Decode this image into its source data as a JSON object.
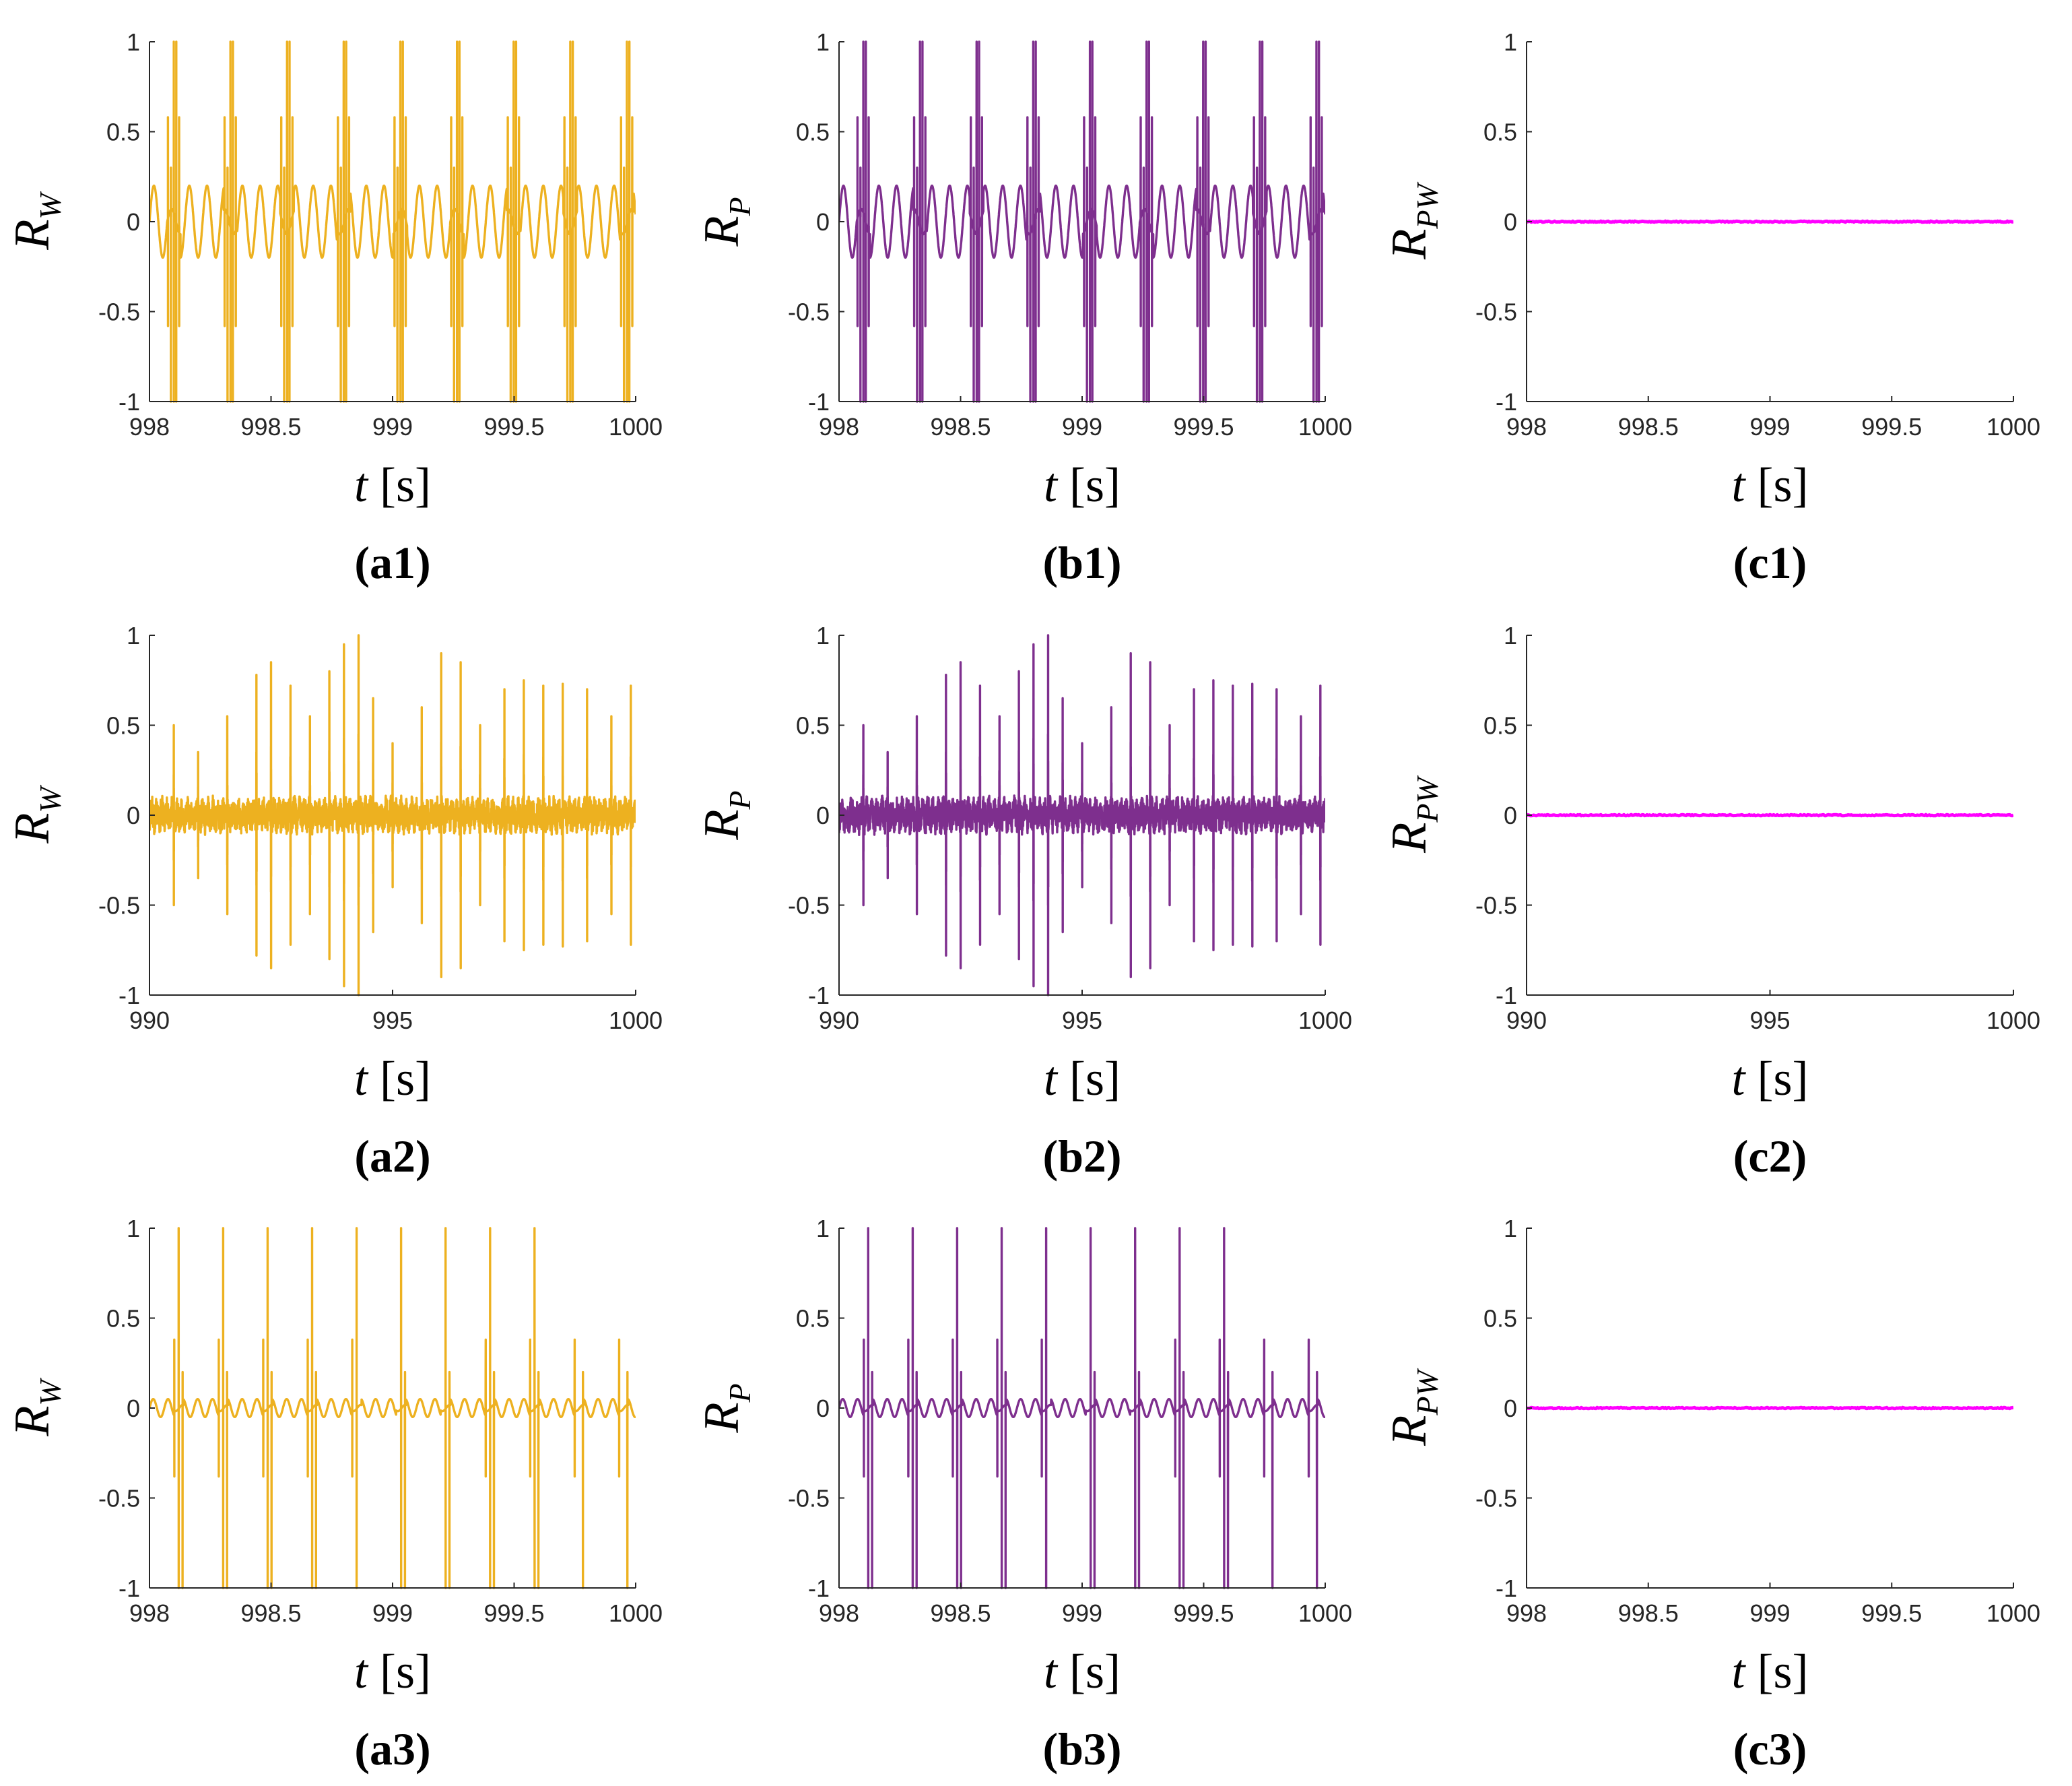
{
  "figure": {
    "panels": [
      {
        "id": "a1",
        "label": "(a1)",
        "ylabel": "R",
        "ysub": "W",
        "xlabel_var": "t",
        "xlabel_unit": "[s]",
        "color": "#EDB120"
      },
      {
        "id": "b1",
        "label": "(b1)",
        "ylabel": "R",
        "ysub": "P",
        "xlabel_var": "t",
        "xlabel_unit": "[s]",
        "color": "#7E2F8E"
      },
      {
        "id": "c1",
        "label": "(c1)",
        "ylabel": "R",
        "ysub": "PW",
        "xlabel_var": "t",
        "xlabel_unit": "[s]",
        "color": "#FF00FF"
      },
      {
        "id": "a2",
        "label": "(a2)",
        "ylabel": "R",
        "ysub": "W",
        "xlabel_var": "t",
        "xlabel_unit": "[s]",
        "color": "#EDB120"
      },
      {
        "id": "b2",
        "label": "(b2)",
        "ylabel": "R",
        "ysub": "P",
        "xlabel_var": "t",
        "xlabel_unit": "[s]",
        "color": "#7E2F8E"
      },
      {
        "id": "c2",
        "label": "(c2)",
        "ylabel": "R",
        "ysub": "PW",
        "xlabel_var": "t",
        "xlabel_unit": "[s]",
        "color": "#FF00FF"
      },
      {
        "id": "a3",
        "label": "(a3)",
        "ylabel": "R",
        "ysub": "W",
        "xlabel_var": "t",
        "xlabel_unit": "[s]",
        "color": "#EDB120"
      },
      {
        "id": "b3",
        "label": "(b3)",
        "ylabel": "R",
        "ysub": "P",
        "xlabel_var": "t",
        "xlabel_unit": "[s]",
        "color": "#7E2F8E"
      },
      {
        "id": "c3",
        "label": "(c3)",
        "ylabel": "R",
        "ysub": "PW",
        "xlabel_var": "t",
        "xlabel_unit": "[s]",
        "color": "#FF00FF"
      }
    ]
  },
  "chart_data": [
    {
      "panel": "a1",
      "type": "line",
      "series_name": "R_W",
      "xlim": [
        998,
        1000
      ],
      "ylim": [
        -1,
        1
      ],
      "xticks": [
        998,
        998.5,
        999,
        999.5,
        1000
      ],
      "xtick_labels": [
        "998",
        "998.5",
        "999",
        "999.5",
        "1000"
      ],
      "yticks": [
        -1,
        -0.5,
        0,
        0.5,
        1
      ],
      "ytick_labels": [
        "-1",
        "-0.5",
        "0",
        "0.5",
        "1"
      ],
      "signal": {
        "pattern": "spike-bursts",
        "period_s": 0.233,
        "first_burst_s": 998.1,
        "burst_peak": 1.0,
        "secondary_peak": 0.58,
        "baseline_amplitude": 0.2
      }
    },
    {
      "panel": "b1",
      "type": "line",
      "series_name": "R_P",
      "xlim": [
        998,
        1000
      ],
      "ylim": [
        -1,
        1
      ],
      "xticks": [
        998,
        998.5,
        999,
        999.5,
        1000
      ],
      "xtick_labels": [
        "998",
        "998.5",
        "999",
        "999.5",
        "1000"
      ],
      "yticks": [
        -1,
        -0.5,
        0,
        0.5,
        1
      ],
      "ytick_labels": [
        "-1",
        "-0.5",
        "0",
        "0.5",
        "1"
      ],
      "signal": {
        "pattern": "spike-bursts",
        "period_s": 0.233,
        "first_burst_s": 998.1,
        "burst_peak": 1.0,
        "secondary_peak": 0.58,
        "baseline_amplitude": 0.2
      }
    },
    {
      "panel": "c1",
      "type": "line",
      "series_name": "R_PW",
      "xlim": [
        998,
        1000
      ],
      "ylim": [
        -1,
        1
      ],
      "xticks": [
        998,
        998.5,
        999,
        999.5,
        1000
      ],
      "xtick_labels": [
        "998",
        "998.5",
        "999",
        "999.5",
        "1000"
      ],
      "yticks": [
        -1,
        -0.5,
        0,
        0.5,
        1
      ],
      "ytick_labels": [
        "-1",
        "-0.5",
        "0",
        "0.5",
        "1"
      ],
      "signal": {
        "pattern": "flat",
        "value": 0
      }
    },
    {
      "panel": "a2",
      "type": "line",
      "series_name": "R_W",
      "xlim": [
        990,
        1000
      ],
      "ylim": [
        -1,
        1
      ],
      "xticks": [
        990,
        995,
        1000
      ],
      "xtick_labels": [
        "990",
        "995",
        "1000"
      ],
      "yticks": [
        -1,
        -0.5,
        0,
        0.5,
        1
      ],
      "ytick_labels": [
        "-1",
        "-0.5",
        "0",
        "0.5",
        "1"
      ],
      "signal": {
        "pattern": "irregular-spikes",
        "spike_times": [
          990.5,
          991.0,
          991.6,
          992.2,
          992.5,
          992.9,
          993.3,
          993.7,
          994.0,
          994.3,
          994.6,
          995.0,
          995.6,
          996.0,
          996.4,
          996.8,
          997.3,
          997.7,
          998.1,
          998.5,
          999.0,
          999.5,
          999.9
        ],
        "spike_peaks": [
          0.5,
          0.35,
          0.55,
          0.78,
          0.85,
          0.72,
          0.55,
          0.8,
          0.95,
          1.0,
          0.65,
          0.4,
          0.6,
          0.9,
          0.85,
          0.5,
          0.7,
          0.75,
          0.72,
          0.73,
          0.7,
          0.55,
          0.72
        ],
        "baseline_amplitude": 0.08
      }
    },
    {
      "panel": "b2",
      "type": "line",
      "series_name": "R_P",
      "xlim": [
        990,
        1000
      ],
      "ylim": [
        -1,
        1
      ],
      "xticks": [
        990,
        995,
        1000
      ],
      "xtick_labels": [
        "990",
        "995",
        "1000"
      ],
      "yticks": [
        -1,
        -0.5,
        0,
        0.5,
        1
      ],
      "ytick_labels": [
        "-1",
        "-0.5",
        "0",
        "0.5",
        "1"
      ],
      "signal": {
        "pattern": "irregular-spikes",
        "spike_times": [
          990.5,
          991.0,
          991.6,
          992.2,
          992.5,
          992.9,
          993.3,
          993.7,
          994.0,
          994.3,
          994.6,
          995.0,
          995.6,
          996.0,
          996.4,
          996.8,
          997.3,
          997.7,
          998.1,
          998.5,
          999.0,
          999.5,
          999.9
        ],
        "spike_peaks": [
          0.5,
          0.35,
          0.55,
          0.78,
          0.85,
          0.72,
          0.55,
          0.8,
          0.95,
          1.0,
          0.65,
          0.4,
          0.6,
          0.9,
          0.85,
          0.5,
          0.7,
          0.75,
          0.72,
          0.73,
          0.7,
          0.55,
          0.72
        ],
        "baseline_amplitude": 0.08
      }
    },
    {
      "panel": "c2",
      "type": "line",
      "series_name": "R_PW",
      "xlim": [
        990,
        1000
      ],
      "ylim": [
        -1,
        1
      ],
      "xticks": [
        990,
        995,
        1000
      ],
      "xtick_labels": [
        "990",
        "995",
        "1000"
      ],
      "yticks": [
        -1,
        -0.5,
        0,
        0.5,
        1
      ],
      "ytick_labels": [
        "-1",
        "-0.5",
        "0",
        "0.5",
        "1"
      ],
      "signal": {
        "pattern": "flat",
        "value": 0
      }
    },
    {
      "panel": "a3",
      "type": "line",
      "series_name": "R_W",
      "xlim": [
        998,
        1000
      ],
      "ylim": [
        -1,
        1
      ],
      "xticks": [
        998,
        998.5,
        999,
        999.5,
        1000
      ],
      "xtick_labels": [
        "998",
        "998.5",
        "999",
        "999.5",
        "1000"
      ],
      "yticks": [
        -1,
        -0.5,
        0,
        0.5,
        1
      ],
      "ytick_labels": [
        "-1",
        "-0.5",
        "0",
        "0.5",
        "1"
      ],
      "signal": {
        "pattern": "sparse-spikes",
        "period_s": 0.183,
        "first_spike_s": 998.12,
        "burst_peak": 1.0,
        "secondary_peak": 0.38,
        "baseline_amplitude": 0.05
      }
    },
    {
      "panel": "b3",
      "type": "line",
      "series_name": "R_P",
      "xlim": [
        998,
        1000
      ],
      "ylim": [
        -1,
        1
      ],
      "xticks": [
        998,
        998.5,
        999,
        999.5,
        1000
      ],
      "xtick_labels": [
        "998",
        "998.5",
        "999",
        "999.5",
        "1000"
      ],
      "yticks": [
        -1,
        -0.5,
        0,
        0.5,
        1
      ],
      "ytick_labels": [
        "-1",
        "-0.5",
        "0",
        "0.5",
        "1"
      ],
      "signal": {
        "pattern": "sparse-spikes",
        "period_s": 0.183,
        "first_spike_s": 998.12,
        "burst_peak": 1.0,
        "secondary_peak": 0.38,
        "baseline_amplitude": 0.05
      }
    },
    {
      "panel": "c3",
      "type": "line",
      "series_name": "R_PW",
      "xlim": [
        998,
        1000
      ],
      "ylim": [
        -1,
        1
      ],
      "xticks": [
        998,
        998.5,
        999,
        999.5,
        1000
      ],
      "xtick_labels": [
        "998",
        "998.5",
        "999",
        "999.5",
        "1000"
      ],
      "yticks": [
        -1,
        -0.5,
        0,
        0.5,
        1
      ],
      "ytick_labels": [
        "-1",
        "-0.5",
        "0",
        "0.5",
        "1"
      ],
      "signal": {
        "pattern": "flat",
        "value": 0
      }
    }
  ]
}
